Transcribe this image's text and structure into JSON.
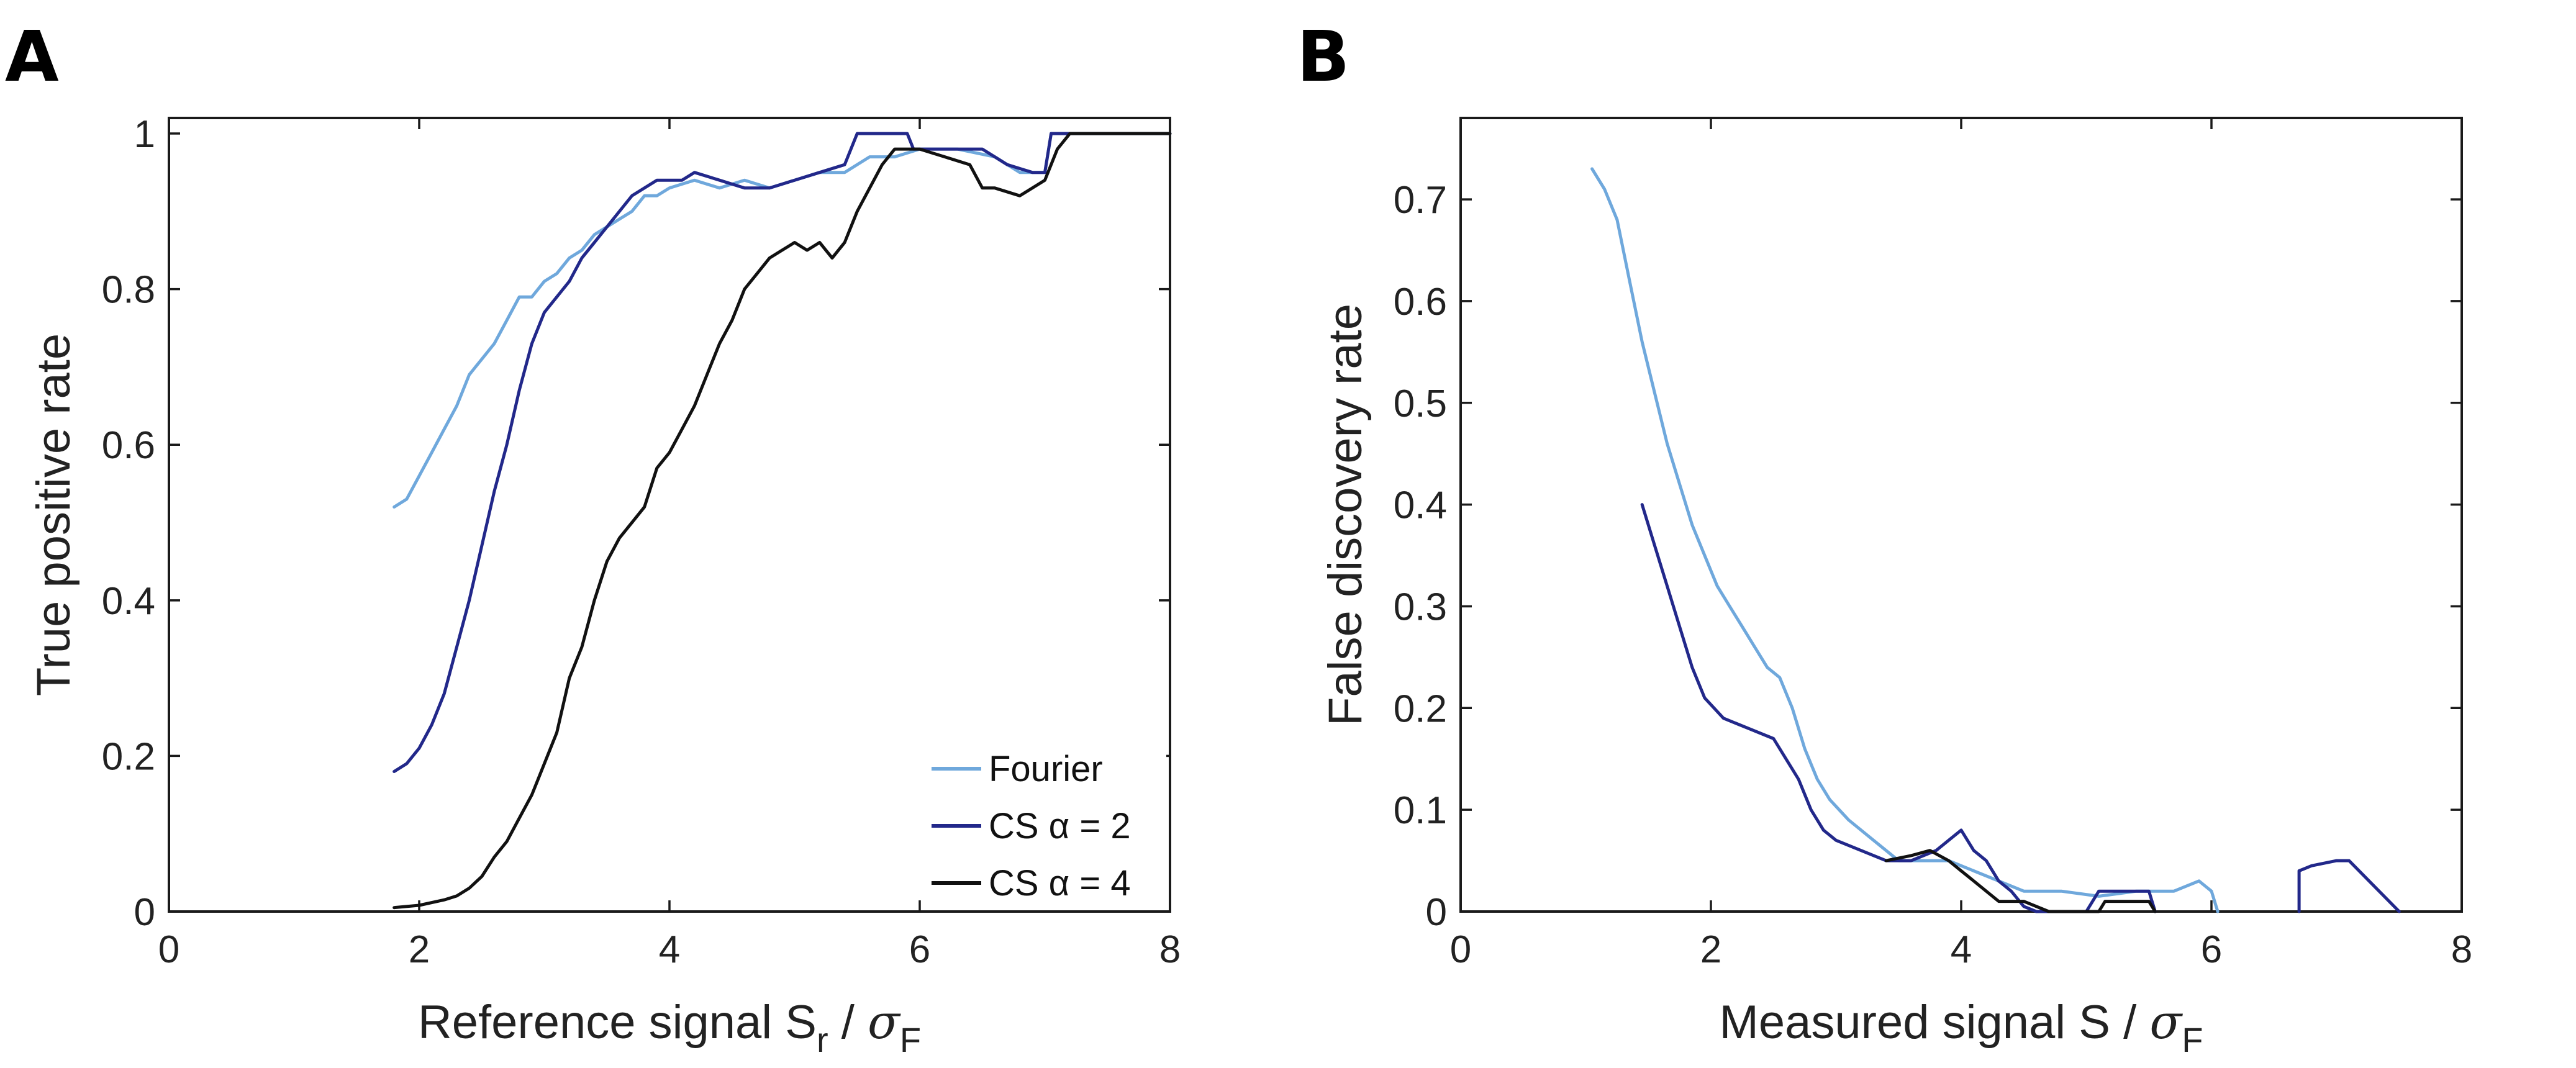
{
  "chart_data": [
    {
      "panel_label": "A",
      "type": "line",
      "ylabel": "True positive rate",
      "xlabel": {
        "main": "Reference signal S",
        "sub": "r",
        "slash": " / ",
        "sigma": "σ",
        "sigma_sub": "F"
      },
      "xlim": [
        0,
        8
      ],
      "ylim": [
        0,
        1.02
      ],
      "xticks": [
        0,
        2,
        4,
        6,
        8
      ],
      "xtick_labels": [
        "0",
        "2",
        "4",
        "6",
        "8"
      ],
      "yticks": [
        0,
        0.2,
        0.4,
        0.6,
        0.8,
        1
      ],
      "ytick_labels": [
        "0",
        "0.2",
        "0.4",
        "0.6",
        "0.8",
        "1"
      ],
      "legend": {
        "placement": "bottom-right",
        "entries": [
          "Fourier",
          "CS α = 2",
          "CS α = 4"
        ]
      },
      "series": [
        {
          "name": "Fourier",
          "color": "#6fa8dc",
          "segments": [
            [
              [
                1.8,
                0.52
              ],
              [
                1.9,
                0.53
              ],
              [
                2.0,
                0.56
              ],
              [
                2.1,
                0.59
              ],
              [
                2.2,
                0.62
              ],
              [
                2.3,
                0.65
              ],
              [
                2.4,
                0.69
              ],
              [
                2.5,
                0.71
              ],
              [
                2.6,
                0.73
              ],
              [
                2.7,
                0.76
              ],
              [
                2.8,
                0.79
              ],
              [
                2.9,
                0.79
              ],
              [
                3.0,
                0.81
              ],
              [
                3.1,
                0.82
              ],
              [
                3.2,
                0.84
              ],
              [
                3.3,
                0.85
              ],
              [
                3.4,
                0.87
              ],
              [
                3.5,
                0.88
              ],
              [
                3.6,
                0.89
              ],
              [
                3.7,
                0.9
              ],
              [
                3.8,
                0.92
              ],
              [
                3.9,
                0.92
              ],
              [
                4.0,
                0.93
              ],
              [
                4.2,
                0.94
              ],
              [
                4.4,
                0.93
              ],
              [
                4.6,
                0.94
              ],
              [
                4.8,
                0.93
              ],
              [
                5.0,
                0.94
              ],
              [
                5.2,
                0.95
              ],
              [
                5.4,
                0.95
              ],
              [
                5.6,
                0.97
              ],
              [
                5.8,
                0.97
              ],
              [
                6.0,
                0.98
              ],
              [
                6.3,
                0.98
              ],
              [
                6.6,
                0.97
              ],
              [
                6.8,
                0.95
              ],
              [
                7.0,
                0.95
              ],
              [
                7.05,
                1.0
              ],
              [
                8.0,
                1.0
              ]
            ]
          ]
        },
        {
          "name": "CS α = 2",
          "color": "#22288a",
          "segments": [
            [
              [
                1.8,
                0.18
              ],
              [
                1.9,
                0.19
              ],
              [
                2.0,
                0.21
              ],
              [
                2.1,
                0.24
              ],
              [
                2.2,
                0.28
              ],
              [
                2.3,
                0.34
              ],
              [
                2.4,
                0.4
              ],
              [
                2.5,
                0.47
              ],
              [
                2.6,
                0.54
              ],
              [
                2.7,
                0.6
              ],
              [
                2.8,
                0.67
              ],
              [
                2.9,
                0.73
              ],
              [
                3.0,
                0.77
              ],
              [
                3.1,
                0.79
              ],
              [
                3.2,
                0.81
              ],
              [
                3.3,
                0.84
              ],
              [
                3.4,
                0.86
              ],
              [
                3.5,
                0.88
              ],
              [
                3.6,
                0.9
              ],
              [
                3.7,
                0.92
              ],
              [
                3.8,
                0.93
              ],
              [
                3.9,
                0.94
              ],
              [
                4.0,
                0.94
              ],
              [
                4.1,
                0.94
              ],
              [
                4.2,
                0.95
              ],
              [
                4.4,
                0.94
              ],
              [
                4.6,
                0.93
              ],
              [
                4.8,
                0.93
              ],
              [
                5.0,
                0.94
              ],
              [
                5.2,
                0.95
              ],
              [
                5.4,
                0.96
              ],
              [
                5.5,
                1.0
              ],
              [
                5.9,
                1.0
              ],
              [
                5.95,
                0.98
              ],
              [
                6.2,
                0.98
              ],
              [
                6.5,
                0.98
              ],
              [
                6.7,
                0.96
              ],
              [
                6.9,
                0.95
              ],
              [
                7.0,
                0.95
              ],
              [
                7.05,
                1.0
              ],
              [
                8.0,
                1.0
              ]
            ]
          ]
        },
        {
          "name": "CS α = 4",
          "color": "#111111",
          "segments": [
            [
              [
                1.8,
                0.005
              ],
              [
                2.0,
                0.008
              ],
              [
                2.2,
                0.015
              ],
              [
                2.3,
                0.02
              ],
              [
                2.4,
                0.03
              ],
              [
                2.5,
                0.045
              ],
              [
                2.6,
                0.07
              ],
              [
                2.7,
                0.09
              ],
              [
                2.8,
                0.12
              ],
              [
                2.9,
                0.15
              ],
              [
                3.0,
                0.19
              ],
              [
                3.1,
                0.23
              ],
              [
                3.2,
                0.3
              ],
              [
                3.3,
                0.34
              ],
              [
                3.4,
                0.4
              ],
              [
                3.5,
                0.45
              ],
              [
                3.6,
                0.48
              ],
              [
                3.7,
                0.5
              ],
              [
                3.8,
                0.52
              ],
              [
                3.9,
                0.57
              ],
              [
                4.0,
                0.59
              ],
              [
                4.1,
                0.62
              ],
              [
                4.2,
                0.65
              ],
              [
                4.3,
                0.69
              ],
              [
                4.4,
                0.73
              ],
              [
                4.5,
                0.76
              ],
              [
                4.6,
                0.8
              ],
              [
                4.7,
                0.82
              ],
              [
                4.8,
                0.84
              ],
              [
                4.9,
                0.85
              ],
              [
                5.0,
                0.86
              ],
              [
                5.1,
                0.85
              ],
              [
                5.2,
                0.86
              ],
              [
                5.3,
                0.84
              ],
              [
                5.4,
                0.86
              ],
              [
                5.5,
                0.9
              ],
              [
                5.6,
                0.93
              ],
              [
                5.7,
                0.96
              ],
              [
                5.8,
                0.98
              ],
              [
                5.9,
                0.98
              ],
              [
                6.0,
                0.98
              ],
              [
                6.2,
                0.97
              ],
              [
                6.4,
                0.96
              ],
              [
                6.5,
                0.93
              ],
              [
                6.6,
                0.93
              ],
              [
                6.8,
                0.92
              ],
              [
                7.0,
                0.94
              ],
              [
                7.1,
                0.98
              ],
              [
                7.2,
                1.0
              ],
              [
                8.0,
                1.0
              ]
            ]
          ]
        }
      ]
    },
    {
      "panel_label": "B",
      "type": "line",
      "ylabel": "False discovery rate",
      "xlabel": {
        "main": "Measured signal S",
        "sub": "",
        "slash": " / ",
        "sigma": "σ",
        "sigma_sub": "F"
      },
      "xlim": [
        0,
        8
      ],
      "ylim": [
        0,
        0.78
      ],
      "xticks": [
        0,
        2,
        4,
        6,
        8
      ],
      "xtick_labels": [
        "0",
        "2",
        "4",
        "6",
        "8"
      ],
      "yticks": [
        0,
        0.1,
        0.2,
        0.3,
        0.4,
        0.5,
        0.6,
        0.7
      ],
      "ytick_labels": [
        "0",
        "0.1",
        "0.2",
        "0.3",
        "0.4",
        "0.5",
        "0.6",
        "0.7"
      ],
      "series": [
        {
          "name": "Fourier",
          "color": "#6fa8dc",
          "segments": [
            [
              [
                1.05,
                0.73
              ],
              [
                1.15,
                0.71
              ],
              [
                1.25,
                0.68
              ],
              [
                1.35,
                0.62
              ],
              [
                1.45,
                0.56
              ],
              [
                1.55,
                0.51
              ],
              [
                1.65,
                0.46
              ],
              [
                1.75,
                0.42
              ],
              [
                1.85,
                0.38
              ],
              [
                1.95,
                0.35
              ],
              [
                2.05,
                0.32
              ],
              [
                2.15,
                0.3
              ],
              [
                2.25,
                0.28
              ],
              [
                2.35,
                0.26
              ],
              [
                2.45,
                0.24
              ],
              [
                2.55,
                0.23
              ],
              [
                2.65,
                0.2
              ],
              [
                2.75,
                0.16
              ],
              [
                2.85,
                0.13
              ],
              [
                2.95,
                0.11
              ],
              [
                3.1,
                0.09
              ],
              [
                3.3,
                0.07
              ],
              [
                3.5,
                0.05
              ],
              [
                3.7,
                0.05
              ],
              [
                3.9,
                0.05
              ],
              [
                4.1,
                0.04
              ],
              [
                4.3,
                0.03
              ],
              [
                4.5,
                0.02
              ],
              [
                4.8,
                0.02
              ],
              [
                5.1,
                0.015
              ],
              [
                5.4,
                0.02
              ],
              [
                5.7,
                0.02
              ],
              [
                5.9,
                0.03
              ],
              [
                6.0,
                0.02
              ],
              [
                6.05,
                0.0
              ]
            ]
          ]
        },
        {
          "name": "CS α = 2",
          "color": "#22288a",
          "segments": [
            [
              [
                1.45,
                0.4
              ],
              [
                1.55,
                0.36
              ],
              [
                1.65,
                0.32
              ],
              [
                1.75,
                0.28
              ],
              [
                1.85,
                0.24
              ],
              [
                1.95,
                0.21
              ],
              [
                2.1,
                0.19
              ],
              [
                2.3,
                0.18
              ],
              [
                2.5,
                0.17
              ],
              [
                2.6,
                0.15
              ],
              [
                2.7,
                0.13
              ],
              [
                2.8,
                0.1
              ],
              [
                2.9,
                0.08
              ],
              [
                3.0,
                0.07
              ],
              [
                3.2,
                0.06
              ],
              [
                3.4,
                0.05
              ],
              [
                3.6,
                0.05
              ],
              [
                3.8,
                0.06
              ],
              [
                3.9,
                0.07
              ],
              [
                4.0,
                0.08
              ],
              [
                4.1,
                0.06
              ],
              [
                4.2,
                0.05
              ],
              [
                4.3,
                0.03
              ],
              [
                4.4,
                0.02
              ],
              [
                4.5,
                0.005
              ],
              [
                4.6,
                0.0
              ],
              [
                5.0,
                0.0
              ],
              [
                5.1,
                0.02
              ],
              [
                5.5,
                0.02
              ],
              [
                5.55,
                0.0
              ]
            ],
            [
              [
                6.7,
                0.0
              ],
              [
                6.7,
                0.04
              ],
              [
                6.8,
                0.045
              ],
              [
                7.0,
                0.05
              ],
              [
                7.1,
                0.05
              ],
              [
                7.5,
                0.0
              ]
            ]
          ]
        },
        {
          "name": "CS α = 4",
          "color": "#111111",
          "segments": [
            [
              [
                3.4,
                0.05
              ],
              [
                3.6,
                0.055
              ],
              [
                3.75,
                0.06
              ],
              [
                3.9,
                0.05
              ],
              [
                4.0,
                0.04
              ],
              [
                4.1,
                0.03
              ],
              [
                4.2,
                0.02
              ],
              [
                4.3,
                0.01
              ],
              [
                4.5,
                0.01
              ],
              [
                4.7,
                0.0
              ],
              [
                5.1,
                0.0
              ],
              [
                5.15,
                0.01
              ],
              [
                5.5,
                0.01
              ],
              [
                5.55,
                0.0
              ]
            ]
          ]
        }
      ]
    }
  ]
}
